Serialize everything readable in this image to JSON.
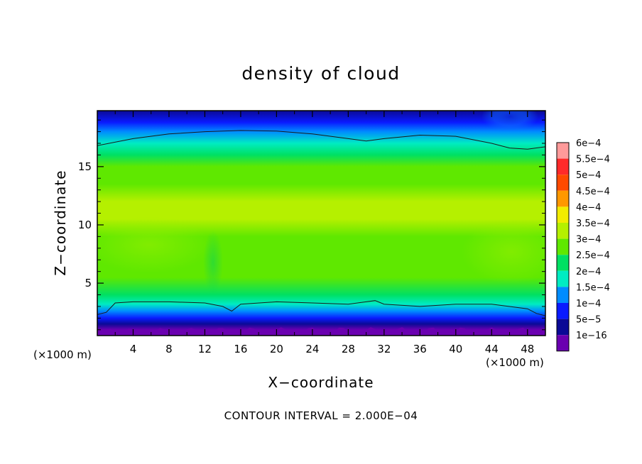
{
  "chart_data": {
    "type": "heatmap",
    "title": "density of cloud",
    "xlabel": "X−coordinate",
    "ylabel": "Z−coordinate",
    "x_unit": "(×1000 m)",
    "y_unit": "(×1000 m)",
    "xlim": [
      0,
      50
    ],
    "ylim": [
      0.5,
      19.8
    ],
    "x_ticks": [
      4,
      8,
      12,
      16,
      20,
      24,
      28,
      32,
      36,
      40,
      44,
      48
    ],
    "x_tick_labels": [
      "4",
      "8",
      "12",
      "16",
      "20",
      "24",
      "28",
      "32",
      "36",
      "40",
      "44",
      "48"
    ],
    "y_ticks": [
      5,
      10,
      15
    ],
    "y_tick_labels": [
      "5",
      "10",
      "15"
    ],
    "contour_interval_text": "CONTOUR INTERVAL = 2.000E−04",
    "colorbar": {
      "labels": [
        "6e−4",
        "5.5e−4",
        "5e−4",
        "4.5e−4",
        "4e−4",
        "3.5e−4",
        "3e−4",
        "2.5e−4",
        "2e−4",
        "1.5e−4",
        "1e−4",
        "5e−5",
        "1e−16"
      ],
      "values": [
        0.0006,
        0.00055,
        0.0005,
        0.00045,
        0.0004,
        0.00035,
        0.0003,
        0.00025,
        0.0002,
        0.00015,
        0.0001,
        5e-05,
        1e-16
      ],
      "colors": [
        "#ff9a9a",
        "#ff2a2a",
        "#ff4a00",
        "#ff9800",
        "#f2ec00",
        "#b5f000",
        "#5fe800",
        "#00e062",
        "#00ecc2",
        "#008cff",
        "#0a1aff",
        "#0b0a96",
        "#6a00b0"
      ]
    },
    "profile": {
      "z": [
        0.5,
        1.0,
        1.5,
        2.0,
        2.6,
        3.2,
        4.0,
        5.5,
        7.5,
        9.0,
        10.5,
        12.0,
        13.5,
        15.0,
        16.0,
        17.0,
        18.0,
        18.8,
        19.8
      ],
      "values": [
        1e-16,
        3e-05,
        7e-05,
        0.00011,
        0.00016,
        0.0002,
        0.00028,
        0.00031,
        0.00033,
        0.00034,
        0.00035,
        0.00036,
        0.00033,
        0.0003,
        0.00027,
        0.00023,
        0.00017,
        0.00012,
        8e-05
      ]
    },
    "contour_upper": {
      "x": [
        0,
        4,
        8,
        12,
        16,
        20,
        24,
        28,
        30,
        32,
        36,
        40,
        44,
        46,
        48,
        50
      ],
      "z": [
        16.8,
        17.4,
        17.8,
        18.0,
        18.1,
        18.05,
        17.8,
        17.4,
        17.2,
        17.4,
        17.7,
        17.6,
        17.0,
        16.6,
        16.5,
        16.7
      ]
    },
    "contour_lower": {
      "x": [
        0,
        1,
        2,
        4,
        8,
        12,
        14,
        15,
        16,
        20,
        24,
        28,
        30,
        31,
        32,
        36,
        40,
        44,
        48,
        49,
        50
      ],
      "z": [
        2.3,
        2.5,
        3.3,
        3.4,
        3.4,
        3.3,
        3.0,
        2.6,
        3.2,
        3.4,
        3.3,
        3.2,
        3.4,
        3.5,
        3.2,
        3.0,
        3.2,
        3.2,
        2.8,
        2.4,
        2.2
      ]
    }
  }
}
